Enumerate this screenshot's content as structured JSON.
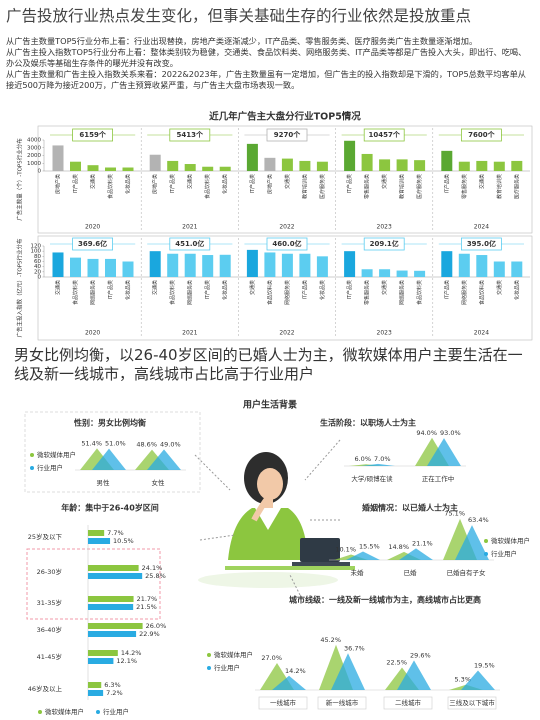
{
  "header": {
    "title": "广告投放行业热点发生变化，但事关基础生存的行业依然是投放重点",
    "paragraphs": [
      "从广告主数量TOP5行业分布上看：行业出现替换，房地产类逐渐减少，IT产品类、零售服务类、医疗服务类广告主数量逐渐增加。",
      "从广告主投入指数TOP5行业分布上看：整体类别较为稳健，交通类、食品饮料类、网络服务类、IT产品类等都是广告投入大头，即出行、吃喝、办公及娱乐等基础生存条件的曝光并没有改变。",
      "从广告主数量和广告主投入指数关系来看：2022&2023年，广告主数量虽有一定增加，但广告主的投入指数却是下滑的，TOP5总数平均客单从接近500万降为接近200万，广告主预算收紧严重，与广告主大盘市场表现一致。"
    ]
  },
  "section": {
    "title": "男女比例均衡，以26-40岁区间的已婚人士为主，微软媒体用户主要生活在一线及新一线城市，高线城市占比高于行业用户",
    "subtitle": "用户生活背景"
  },
  "chart_data": [
    {
      "type": "bar",
      "title": "近几年广告主大盘分行业TOP5情况",
      "ylabel": "广告主数量（个）-TOP5行业分布",
      "ylim": [
        0,
        4000
      ],
      "yticks": [
        0,
        1000,
        2000,
        3000,
        4000
      ],
      "groups": [
        {
          "year": "2020",
          "total_label": "6159个",
          "categories": [
            "房地产类",
            "IT产品类",
            "交通类",
            "食品饮料类",
            "化妆品类"
          ],
          "values": [
            3300,
            1200,
            750,
            450,
            450
          ],
          "colors": [
            "#b3b3b3",
            "#8cc63f",
            "#8cc63f",
            "#8cc63f",
            "#8cc63f"
          ]
        },
        {
          "year": "2021",
          "total_label": "5413个",
          "categories": [
            "房地产类",
            "IT产品类",
            "交通类",
            "食品饮料类",
            "化妆品类"
          ],
          "values": [
            2100,
            1300,
            900,
            550,
            550
          ],
          "colors": [
            "#b3b3b3",
            "#8cc63f",
            "#8cc63f",
            "#8cc63f",
            "#8cc63f"
          ]
        },
        {
          "year": "2022",
          "total_label": "9270个",
          "categories": [
            "IT产品类",
            "房地产类",
            "交通类",
            "教育培训类",
            "医疗服务类"
          ],
          "values": [
            3500,
            1700,
            1600,
            1300,
            1200
          ],
          "colors": [
            "#5aa832",
            "#b3b3b3",
            "#8cc63f",
            "#8cc63f",
            "#8cc63f"
          ]
        },
        {
          "year": "2023",
          "total_label": "10457个",
          "categories": [
            "IT产品类",
            "零售服务类",
            "交通类",
            "教育培训类",
            "医疗服务类"
          ],
          "values": [
            3900,
            2200,
            1500,
            1500,
            1400
          ],
          "colors": [
            "#5aa832",
            "#8cc63f",
            "#8cc63f",
            "#8cc63f",
            "#8cc63f"
          ]
        },
        {
          "year": "2024",
          "total_label": "7600个",
          "categories": [
            "IT产品类",
            "零售服务类",
            "交通类",
            "教育培训类",
            "医疗服务类"
          ],
          "values": [
            2600,
            1200,
            1300,
            1200,
            1300
          ],
          "colors": [
            "#5aa832",
            "#8cc63f",
            "#8cc63f",
            "#8cc63f",
            "#8cc63f"
          ]
        }
      ]
    },
    {
      "type": "bar",
      "ylabel": "广告主投入指数（亿元）-TOP5行业分布",
      "ylim": [
        0,
        120
      ],
      "yticks": [
        0,
        20,
        40,
        60,
        80,
        100,
        120
      ],
      "groups": [
        {
          "year": "2020",
          "total_label": "369.6亿",
          "categories": [
            "交通类",
            "食品饮料类",
            "网络服务类",
            "IT产品类",
            "化妆品类"
          ],
          "values": [
            95,
            75,
            70,
            70,
            60
          ],
          "colors": [
            "#1aa7de",
            "#5ccdf0",
            "#5ccdf0",
            "#5ccdf0",
            "#5ccdf0"
          ]
        },
        {
          "year": "2021",
          "total_label": "451.0亿",
          "categories": [
            "交通类",
            "食品饮料类",
            "网络服务类",
            "IT产品类",
            "化妆品类"
          ],
          "values": [
            100,
            90,
            90,
            85,
            86
          ],
          "colors": [
            "#1aa7de",
            "#5ccdf0",
            "#5ccdf0",
            "#5ccdf0",
            "#5ccdf0"
          ]
        },
        {
          "year": "2022",
          "total_label": "460.0亿",
          "categories": [
            "交通类",
            "食品饮料类",
            "网络服务类",
            "IT产品类",
            "化妆品类"
          ],
          "values": [
            105,
            95,
            90,
            90,
            80
          ],
          "colors": [
            "#1aa7de",
            "#5ccdf0",
            "#5ccdf0",
            "#5ccdf0",
            "#5ccdf0"
          ]
        },
        {
          "year": "2023",
          "total_label": "209.1亿",
          "categories": [
            "IT产品类",
            "零售服务类",
            "交通类",
            "网络服务类",
            "食品饮料类"
          ],
          "values": [
            100,
            30,
            30,
            25,
            24
          ],
          "colors": [
            "#1aa7de",
            "#5ccdf0",
            "#5ccdf0",
            "#5ccdf0",
            "#5ccdf0"
          ]
        },
        {
          "year": "2024",
          "total_label": "395.0亿",
          "categories": [
            "IT产品类",
            "网络服务类",
            "食品饮料类",
            "交通类",
            "化妆品类"
          ],
          "values": [
            100,
            90,
            85,
            60,
            60
          ],
          "colors": [
            "#1aa7de",
            "#5ccdf0",
            "#5ccdf0",
            "#5ccdf0",
            "#5ccdf0"
          ]
        }
      ]
    },
    {
      "type": "peak",
      "title": "性别：男女比例均衡",
      "categories": [
        "男性",
        "女性"
      ],
      "series": [
        {
          "name": "微软媒体用户",
          "color": "#8cc63f",
          "values": [
            51.4,
            48.6
          ],
          "value_labels": [
            "51.4%",
            "48.6%"
          ]
        },
        {
          "name": "行业用户",
          "color": "#29abe2",
          "values": [
            51.0,
            49.0
          ],
          "value_labels": [
            "51.0%",
            "49.0%"
          ]
        }
      ]
    },
    {
      "type": "peak",
      "title": "生活阶段：以职场人士为主",
      "categories": [
        "大学/硕博在读",
        "正在工作中"
      ],
      "series": [
        {
          "color": "#8cc63f",
          "values": [
            6.0,
            94.0
          ],
          "value_labels": [
            "6.0%",
            "94.0%"
          ]
        },
        {
          "color": "#29abe2",
          "values": [
            7.0,
            93.0
          ],
          "value_labels": [
            "7.0%",
            "93.0%"
          ]
        }
      ]
    },
    {
      "type": "hbar",
      "title": "年龄：集中于26-40岁区间",
      "categories": [
        "25岁及以下",
        "26-30岁",
        "31-35岁",
        "36-40岁",
        "41-45岁",
        "46岁及以上"
      ],
      "series": [
        {
          "name": "微软媒体用户",
          "color": "#8cc63f",
          "values": [
            7.7,
            24.1,
            21.7,
            26.0,
            14.2,
            6.3
          ],
          "value_labels": [
            "7.7%",
            "24.1%",
            "21.7%",
            "26.0%",
            "14.2%",
            "6.3%"
          ]
        },
        {
          "name": "行业用户",
          "color": "#29abe2",
          "values": [
            10.5,
            25.8,
            21.5,
            22.9,
            12.1,
            7.2
          ],
          "value_labels": [
            "10.5%",
            "25.8%",
            "21.5%",
            "22.9%",
            "12.1%",
            "7.2%"
          ]
        }
      ]
    },
    {
      "type": "peak",
      "title": "婚姻情况：以已婚人士为主",
      "categories": [
        "未婚",
        "已婚",
        "已婚自有子女"
      ],
      "series": [
        {
          "name": "微软媒体用户",
          "color": "#8cc63f",
          "values": [
            10.1,
            14.8,
            75.1
          ],
          "value_labels": [
            "10.1%",
            "14.8%",
            "75.1%"
          ]
        },
        {
          "name": "行业用户",
          "color": "#29abe2",
          "values": [
            15.5,
            21.1,
            63.4
          ],
          "value_labels": [
            "15.5%",
            "21.1%",
            "63.4%"
          ]
        }
      ]
    },
    {
      "type": "peak",
      "title": "城市线级：一线及新一线城市为主，高线城市占比更高",
      "categories": [
        "一线城市",
        "新一线城市",
        "二线城市",
        "三线及以下城市"
      ],
      "series": [
        {
          "name": "微软媒体用户",
          "color": "#8cc63f",
          "values": [
            27.0,
            45.2,
            22.5,
            5.3
          ],
          "value_labels": [
            "27.0%",
            "45.2%",
            "22.5%",
            "5.3%"
          ]
        },
        {
          "name": "行业用户",
          "color": "#29abe2",
          "values": [
            14.2,
            36.7,
            29.6,
            19.5
          ],
          "value_labels": [
            "14.2%",
            "36.7%",
            "29.6%",
            "19.5%"
          ]
        }
      ]
    }
  ]
}
